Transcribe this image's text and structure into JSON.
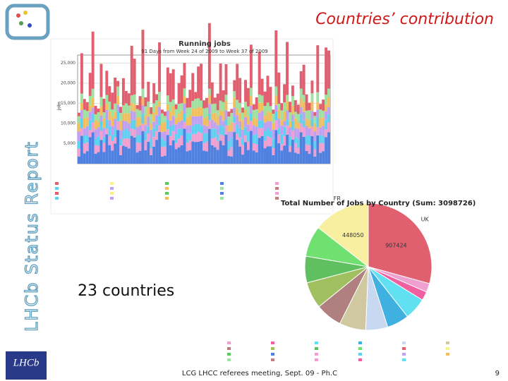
{
  "slide": {
    "title": "Countries’ contribution",
    "side_label": "LHCb Status Report",
    "caption": "23 countries",
    "footer": "LCG LHCC referees meeting, Sept. 09 - Ph.C",
    "page_number": "9",
    "logo_text": "LHCb"
  },
  "chart_data": [
    {
      "type": "stacked-bar",
      "title": "Running jobs",
      "subtitle": "91 Days from Week 24 of 2009 to Week 37 of 2009",
      "y_label": "jobs",
      "ylim": [
        0,
        27000
      ],
      "yticks": [
        {
          "value": 5000,
          "label": "5,000"
        },
        {
          "value": 10000,
          "label": "10,000"
        },
        {
          "value": 15000,
          "label": "15,000"
        },
        {
          "value": 20000,
          "label": "20,000"
        },
        {
          "value": 25000,
          "label": "25,000"
        }
      ]
    },
    {
      "type": "pie",
      "title": "Total Number of Jobs by Country (Sum: 3098726)",
      "total": 3098726,
      "categories": [
        "UK",
        "FR"
      ],
      "values": [
        907424,
        448050
      ],
      "colors": [
        "#e06070",
        "#f8f0a0"
      ]
    }
  ]
}
